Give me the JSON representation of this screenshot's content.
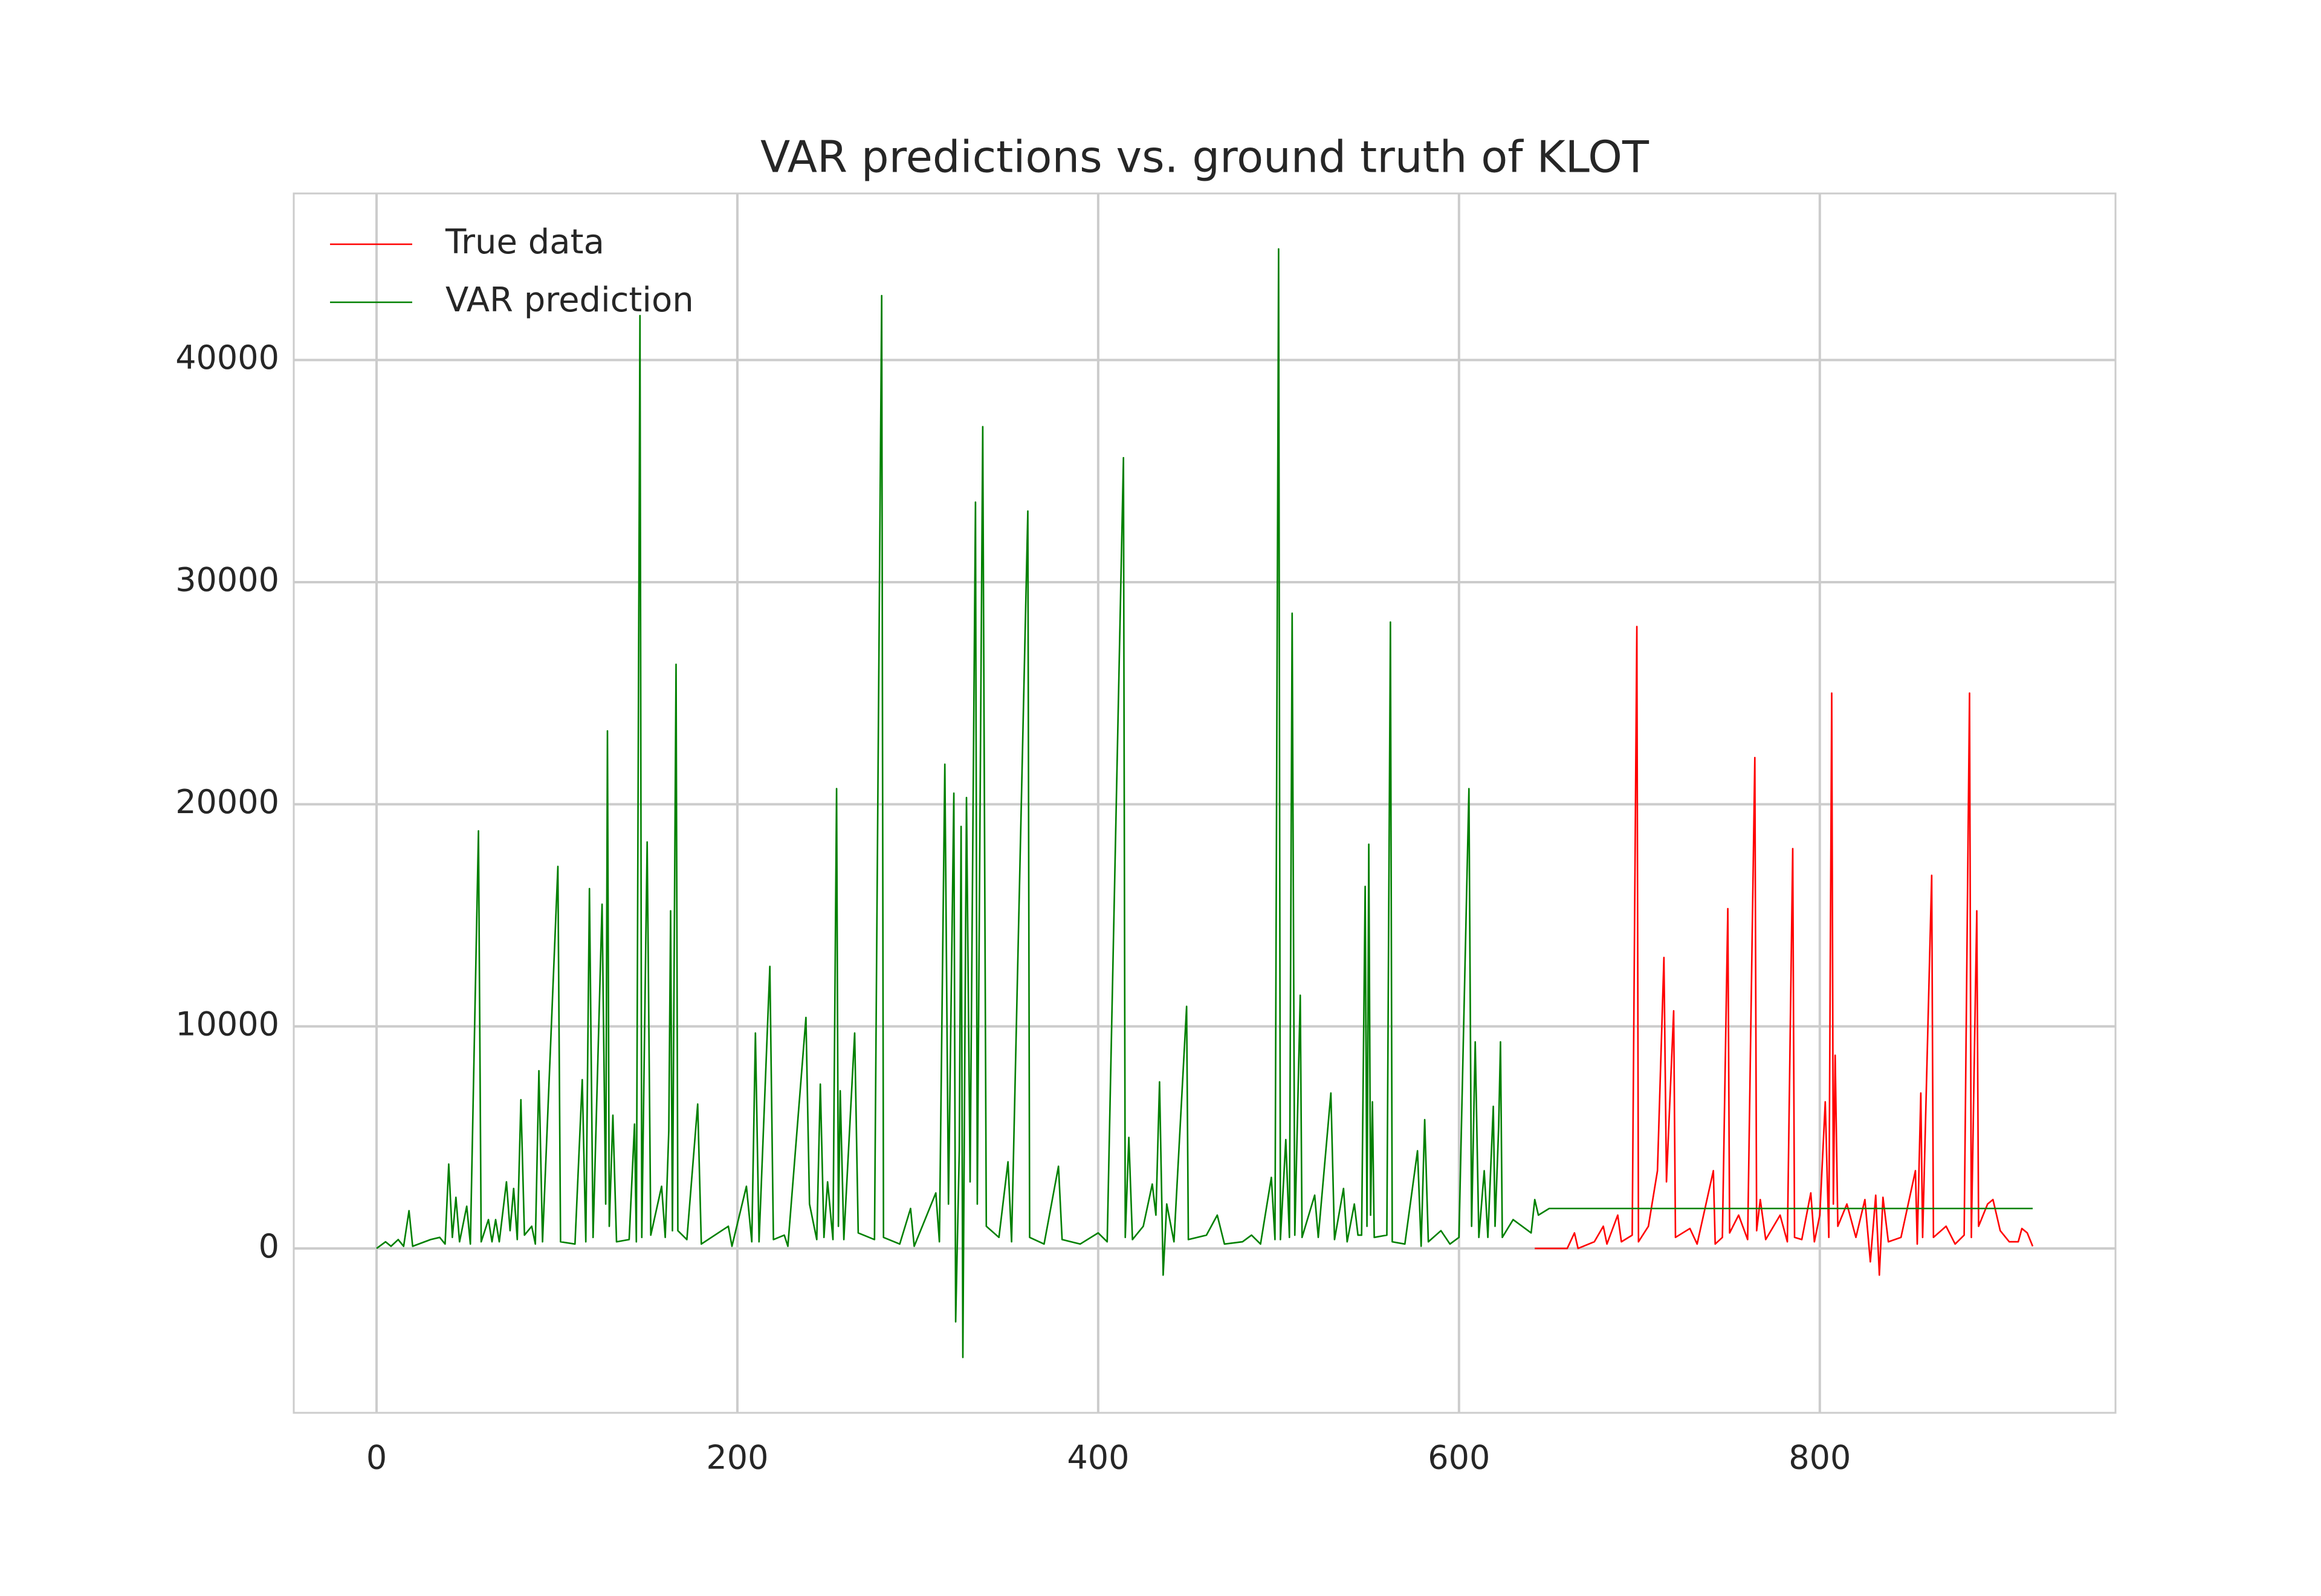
{
  "chart_data": {
    "type": "line",
    "title": "VAR predictions vs. ground truth of KLOT",
    "xlim": [
      -45.9,
      963.9
    ],
    "ylim": [
      -7400,
      47500
    ],
    "xticks": [
      0,
      200,
      400,
      600,
      800
    ],
    "yticks": [
      0,
      10000,
      20000,
      30000,
      40000
    ],
    "grid": true,
    "legend": "upper left",
    "series": [
      {
        "name": "True data",
        "color": "#ff0000",
        "x": [
          642,
          660,
          664,
          666,
          675,
          680,
          682,
          688,
          690,
          696,
          698.6,
          699.5,
          705,
          710,
          713.6,
          715,
          719,
          720,
          728,
          732,
          741,
          742,
          746,
          749,
          750,
          755,
          760,
          764,
          765,
          767,
          770,
          778,
          782,
          785,
          786,
          790,
          795,
          797,
          800,
          803,
          805,
          806.6,
          807.5,
          808.5,
          810,
          815,
          820,
          825,
          828,
          831,
          833,
          835,
          838,
          845,
          853,
          854,
          856,
          857,
          862,
          863,
          870,
          875,
          880,
          883,
          884,
          887,
          888,
          893,
          896,
          900,
          905,
          910,
          912,
          915,
          918
        ],
        "values": [
          0,
          0,
          700,
          0,
          300,
          1000,
          200,
          1500,
          300,
          600,
          28000,
          300,
          1000,
          3500,
          13100,
          3000,
          10700,
          500,
          900,
          200,
          3500,
          200,
          500,
          15300,
          700,
          1500,
          400,
          22100,
          800,
          2200,
          400,
          1500,
          300,
          18000,
          500,
          400,
          2500,
          300,
          1500,
          6600,
          500,
          25000,
          2000,
          8700,
          1000,
          2000,
          500,
          2200,
          -600,
          2400,
          -1200,
          2300,
          300,
          500,
          3500,
          200,
          7000,
          500,
          16800,
          500,
          1000,
          200,
          600,
          25000,
          500,
          15200,
          1000,
          2000,
          2200,
          800,
          300,
          300,
          900,
          700,
          100
        ]
      },
      {
        "name": "VAR prediction",
        "color": "#008000",
        "x": [
          0,
          5,
          8,
          12,
          15,
          18,
          20,
          30,
          35,
          38,
          40,
          42,
          44,
          46,
          50,
          52,
          56.5,
          58,
          62,
          64,
          66,
          68,
          72,
          74,
          76,
          78,
          80,
          82,
          86,
          88,
          90,
          92,
          100.5,
          102,
          110,
          114,
          116,
          118,
          120,
          125,
          127,
          128,
          129,
          131,
          133,
          140,
          143,
          144,
          146,
          147,
          150,
          152,
          158,
          160,
          162,
          163,
          164,
          166,
          167,
          172,
          178,
          180,
          195,
          197,
          205,
          208,
          210,
          212,
          218,
          220,
          226,
          228,
          238,
          240,
          244,
          246,
          248,
          250,
          253,
          255,
          256,
          257,
          259,
          265,
          267,
          276,
          280,
          281,
          290,
          296,
          298,
          310,
          312,
          315,
          317,
          320,
          321,
          323,
          324,
          325,
          327,
          329,
          332,
          333,
          336,
          338,
          345,
          350,
          352,
          361,
          362,
          370,
          378,
          380,
          390,
          400,
          405,
          414,
          415,
          417,
          419,
          425,
          430,
          432,
          434,
          436,
          438,
          442,
          449,
          450,
          460,
          466,
          470,
          480,
          485,
          490,
          496,
          498,
          500,
          501,
          504,
          506,
          507.5,
          509,
          512,
          513,
          520,
          522,
          529,
          531,
          536,
          538,
          542,
          544,
          546,
          548,
          549,
          550,
          551,
          552,
          553,
          560,
          562,
          563,
          570,
          577,
          579,
          581,
          583,
          590,
          595,
          600,
          605.5,
          607,
          609,
          611,
          614,
          616,
          619,
          620,
          622,
          623,
          624,
          630,
          640,
          642,
          644,
          650,
          700,
          918
        ],
        "values": [
          0,
          300,
          100,
          400,
          100,
          1700,
          100,
          400,
          500,
          200,
          3800,
          500,
          2300,
          300,
          1900,
          200,
          18800,
          300,
          1300,
          300,
          1300,
          300,
          3000,
          800,
          2700,
          400,
          6700,
          600,
          1000,
          200,
          8000,
          300,
          17200,
          300,
          200,
          7600,
          300,
          16200,
          500,
          15500,
          2000,
          23300,
          1000,
          6000,
          300,
          400,
          5600,
          300,
          42000,
          500,
          18300,
          600,
          2800,
          500,
          5300,
          15200,
          800,
          26300,
          800,
          400,
          6500,
          200,
          1000,
          100,
          2800,
          300,
          9700,
          300,
          12700,
          400,
          600,
          100,
          10400,
          2000,
          400,
          7400,
          500,
          3000,
          400,
          20700,
          1000,
          7100,
          400,
          9700,
          700,
          400,
          42900,
          500,
          200,
          1800,
          100,
          2500,
          300,
          21800,
          2000,
          20500,
          -3300,
          4400,
          19000,
          -4900,
          20300,
          3000,
          33600,
          2000,
          37000,
          1000,
          500,
          3900,
          300,
          33200,
          500,
          200,
          3700,
          400,
          200,
          700,
          300,
          35600,
          500,
          5000,
          400,
          1000,
          2900,
          1500,
          7500,
          -1200,
          2000,
          300,
          10900,
          400,
          600,
          1500,
          200,
          300,
          600,
          200,
          3200,
          400,
          45000,
          400,
          4900,
          500,
          28600,
          600,
          11400,
          500,
          2400,
          500,
          7000,
          400,
          2700,
          300,
          2000,
          600,
          600,
          16300,
          1000,
          18200,
          1500,
          6600,
          500,
          600,
          28200,
          300,
          200,
          4400,
          100,
          5800,
          300,
          800,
          200,
          500,
          20700,
          1000,
          9300,
          500,
          3500,
          500,
          6400,
          1000,
          5500,
          9300,
          500,
          1300,
          700,
          2200,
          1500,
          1800,
          1800,
          1800
        ]
      }
    ]
  }
}
